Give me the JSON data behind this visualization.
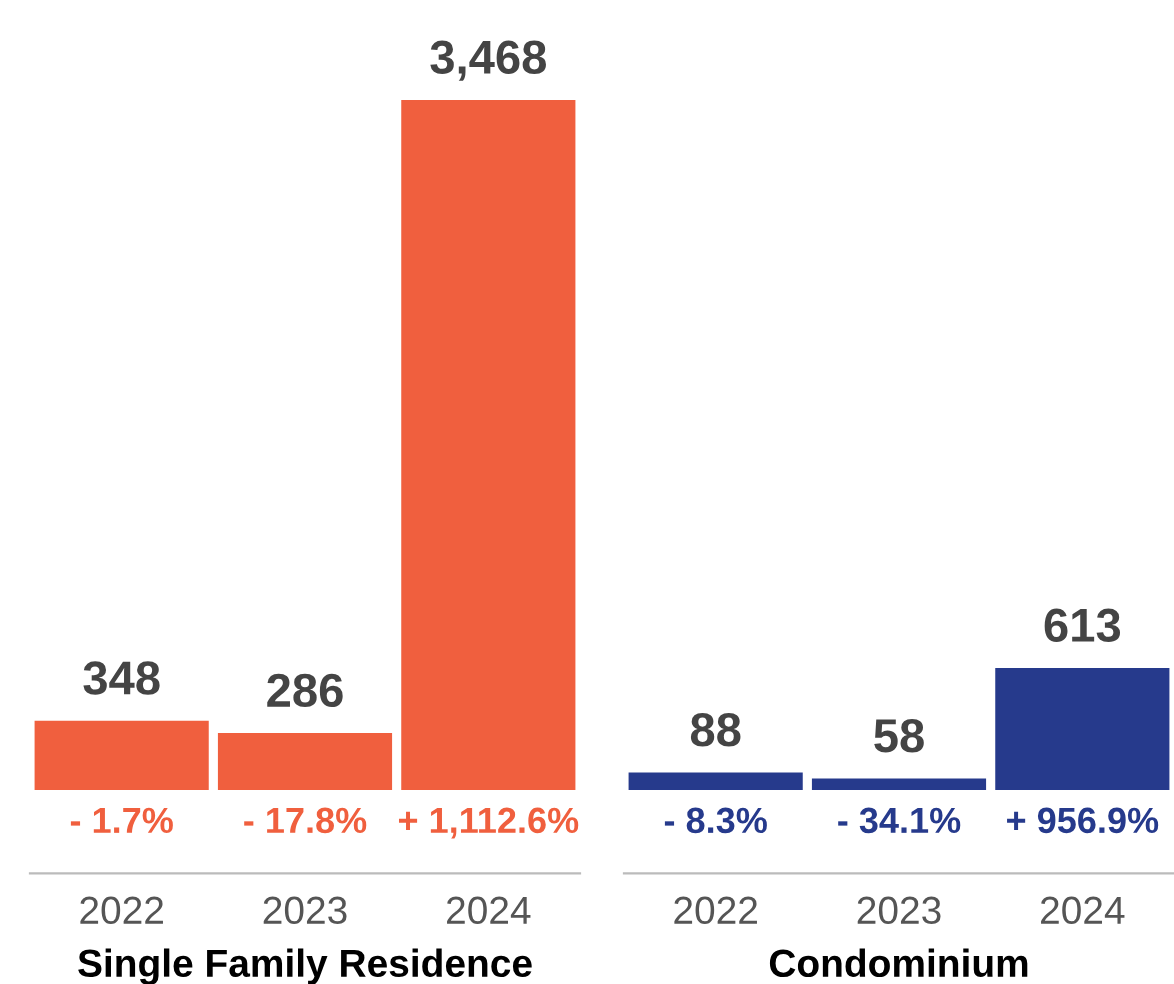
{
  "chart_data": [
    {
      "type": "bar",
      "xlabel": "Single Family Residence",
      "categories": [
        "2022",
        "2023",
        "2024"
      ],
      "values": [
        348,
        286,
        3468
      ],
      "colors": [
        "#f05f3e",
        "#f05f3e",
        "#f05f3e"
      ],
      "data_labels": true,
      "value_labels": [
        "348",
        "286",
        "3,468"
      ],
      "tick_labels": "x",
      "annotations": [
        "- 1.7%",
        "- 17.8%",
        "+ 1,112.6%"
      ]
    },
    {
      "type": "bar",
      "xlabel": "Condominium",
      "categories": [
        "2022",
        "2023",
        "2024"
      ],
      "values": [
        88,
        58,
        613
      ],
      "colors": [
        "#263a8c",
        "#263a8c",
        "#263a8c"
      ],
      "data_labels": true,
      "value_labels": [
        "88",
        "58",
        "613"
      ],
      "tick_labels": "x",
      "annotations": [
        "- 8.3%",
        "- 34.1%",
        "+ 956.9%"
      ]
    }
  ]
}
